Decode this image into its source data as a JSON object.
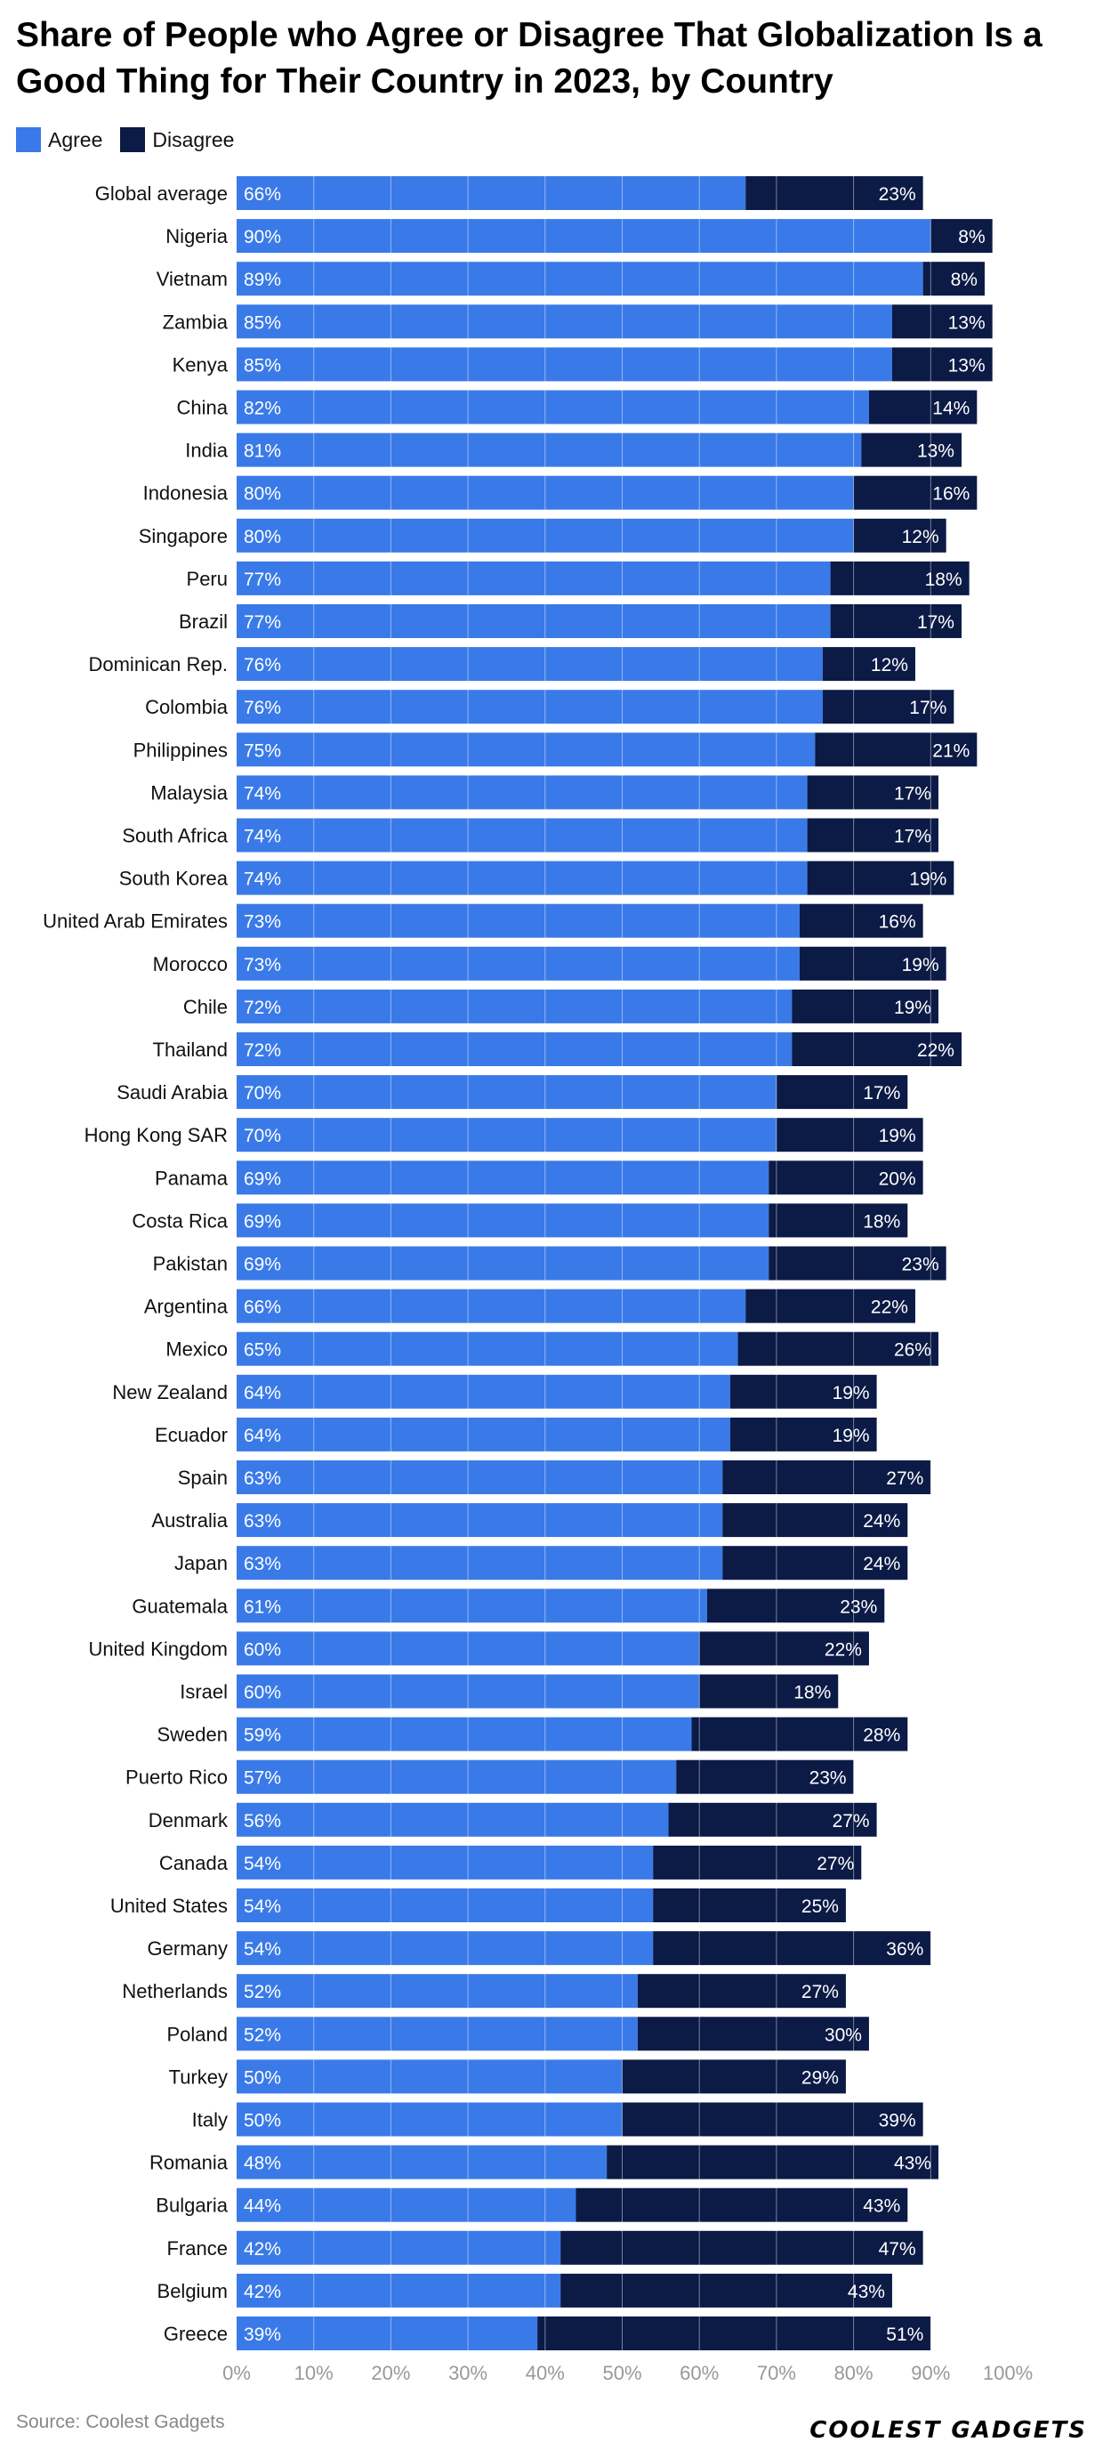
{
  "title": "Share of People who Agree or Disagree That Globalization Is a Good Thing for Their Country in 2023, by Country",
  "source": "Source: Coolest Gadgets",
  "logo": "COOLEST GADGETS",
  "colors": {
    "agree": "#3a7ae8",
    "disagree": "#0c1a46",
    "grid": "#ffffff",
    "axis_text": "#999999"
  },
  "chart_data": {
    "type": "bar",
    "orientation": "horizontal",
    "stacked": true,
    "xlim": [
      0,
      100
    ],
    "xticks": [
      "0%",
      "10%",
      "20%",
      "30%",
      "40%",
      "50%",
      "60%",
      "70%",
      "80%",
      "90%",
      "100%"
    ],
    "legend_position": "top-left",
    "categories": [
      "Global average",
      "Nigeria",
      "Vietnam",
      "Zambia",
      "Kenya",
      "China",
      "India",
      "Indonesia",
      "Singapore",
      "Peru",
      "Brazil",
      "Dominican Rep.",
      "Colombia",
      "Philippines",
      "Malaysia",
      "South Africa",
      "South Korea",
      "United Arab Emirates",
      "Morocco",
      "Chile",
      "Thailand",
      "Saudi Arabia",
      "Hong Kong SAR",
      "Panama",
      "Costa Rica",
      "Pakistan",
      "Argentina",
      "Mexico",
      "New Zealand",
      "Ecuador",
      "Spain",
      "Australia",
      "Japan",
      "Guatemala",
      "United Kingdom",
      "Israel",
      "Sweden",
      "Puerto Rico",
      "Denmark",
      "Canada",
      "United States",
      "Germany",
      "Netherlands",
      "Poland",
      "Turkey",
      "Italy",
      "Romania",
      "Bulgaria",
      "France",
      "Belgium",
      "Greece"
    ],
    "series": [
      {
        "name": "Agree",
        "values": [
          66,
          90,
          89,
          85,
          85,
          82,
          81,
          80,
          80,
          77,
          77,
          76,
          76,
          75,
          74,
          74,
          74,
          73,
          73,
          72,
          72,
          70,
          70,
          69,
          69,
          69,
          66,
          65,
          64,
          64,
          63,
          63,
          63,
          61,
          60,
          60,
          59,
          57,
          56,
          54,
          54,
          54,
          52,
          52,
          50,
          50,
          48,
          44,
          42,
          42,
          39
        ]
      },
      {
        "name": "Disagree",
        "values": [
          23,
          8,
          8,
          13,
          13,
          14,
          13,
          16,
          12,
          18,
          17,
          12,
          17,
          21,
          17,
          17,
          19,
          16,
          19,
          19,
          22,
          17,
          19,
          20,
          18,
          23,
          22,
          26,
          19,
          19,
          27,
          24,
          24,
          23,
          22,
          18,
          28,
          23,
          27,
          27,
          25,
          36,
          27,
          30,
          29,
          39,
          43,
          43,
          47,
          43,
          51
        ]
      }
    ]
  }
}
